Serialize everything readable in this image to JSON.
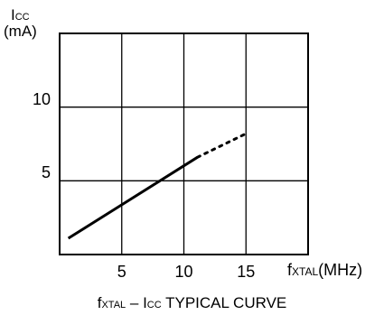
{
  "chart_data": {
    "type": "line",
    "ylabel_main": "I",
    "ylabel_sub": "CC",
    "ylabel_unit": "(mA)",
    "xlabel_main": "f",
    "xlabel_sub": "XTAL",
    "xlabel_unit": "(MHz)",
    "caption_f": "f",
    "caption_f_sub": "XTAL",
    "caption_mid": " – I",
    "caption_i_sub": "CC",
    "caption_tail": " TYPICAL  CURVE",
    "xlim": [
      0,
      20
    ],
    "ylim": [
      0,
      15
    ],
    "x_ticks": [
      {
        "value": 5,
        "label": "5"
      },
      {
        "value": 10,
        "label": "10"
      },
      {
        "value": 15,
        "label": "15"
      }
    ],
    "y_ticks": [
      {
        "value": 5,
        "label": "5"
      },
      {
        "value": 10,
        "label": "10"
      }
    ],
    "grid": true,
    "series": [
      {
        "style": "solid",
        "x": [
          0.7,
          11.1
        ],
        "y": [
          1.1,
          6.6
        ]
      },
      {
        "style": "dotted",
        "x": [
          11.1,
          15.0
        ],
        "y": [
          6.6,
          8.2
        ]
      }
    ]
  }
}
